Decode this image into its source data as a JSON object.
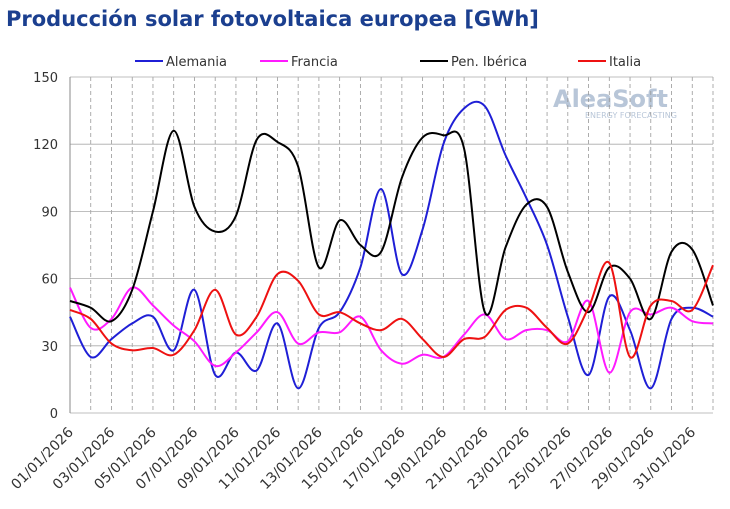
{
  "chart_data": {
    "type": "line",
    "title": "Producción solar fotovoltaica europea [GWh]",
    "watermark": "AleaSoft",
    "watermark_sub": "ENERGY FORECASTING",
    "categories": [
      "01/01/2026",
      null,
      "03/01/2026",
      null,
      "05/01/2026",
      null,
      "07/01/2026",
      null,
      "09/01/2026",
      null,
      "11/01/2026",
      null,
      "13/01/2026",
      null,
      "15/01/2026",
      null,
      "17/01/2026",
      null,
      "19/01/2026",
      null,
      "21/01/2026",
      null,
      "23/01/2026",
      null,
      "25/01/2026",
      null,
      "27/01/2026",
      null,
      "29/01/2026",
      null,
      "31/01/2026",
      null
    ],
    "series": [
      {
        "name": "Alemania",
        "color": "#1f1fd6",
        "values": [
          43,
          25,
          33,
          40,
          43,
          28,
          55,
          17,
          27,
          19,
          40,
          11,
          38,
          45,
          65,
          100,
          62,
          82,
          120,
          136,
          137,
          115,
          96,
          75,
          43,
          17,
          52,
          37,
          11,
          42,
          47,
          43
        ]
      },
      {
        "name": "Francia",
        "color": "#ff1aff",
        "values": [
          56,
          38,
          42,
          56,
          48,
          39,
          32,
          21,
          27,
          36,
          45,
          31,
          36,
          36,
          43,
          28,
          22,
          26,
          25,
          35,
          44,
          33,
          37,
          37,
          32,
          50,
          18,
          45,
          44,
          47,
          41,
          40
        ]
      },
      {
        "name": "Pen. Ibérica",
        "color": "#000000",
        "values": [
          50,
          47,
          41,
          55,
          90,
          126,
          92,
          81,
          88,
          122,
          121,
          110,
          65,
          86,
          75,
          72,
          105,
          123,
          124,
          118,
          45,
          74,
          93,
          92,
          63,
          45,
          65,
          60,
          42,
          72,
          73,
          48
        ]
      },
      {
        "name": "Italia",
        "color": "#ee1111",
        "values": [
          46,
          42,
          31,
          28,
          29,
          26,
          37,
          55,
          35,
          43,
          62,
          59,
          44,
          45,
          40,
          37,
          42,
          33,
          25,
          33,
          34,
          46,
          47,
          38,
          31,
          47,
          67,
          25,
          48,
          50,
          46,
          66
        ]
      }
    ],
    "ylim": [
      0,
      150
    ],
    "yticks": [
      0,
      30,
      60,
      90,
      120,
      150
    ],
    "grid": true
  }
}
